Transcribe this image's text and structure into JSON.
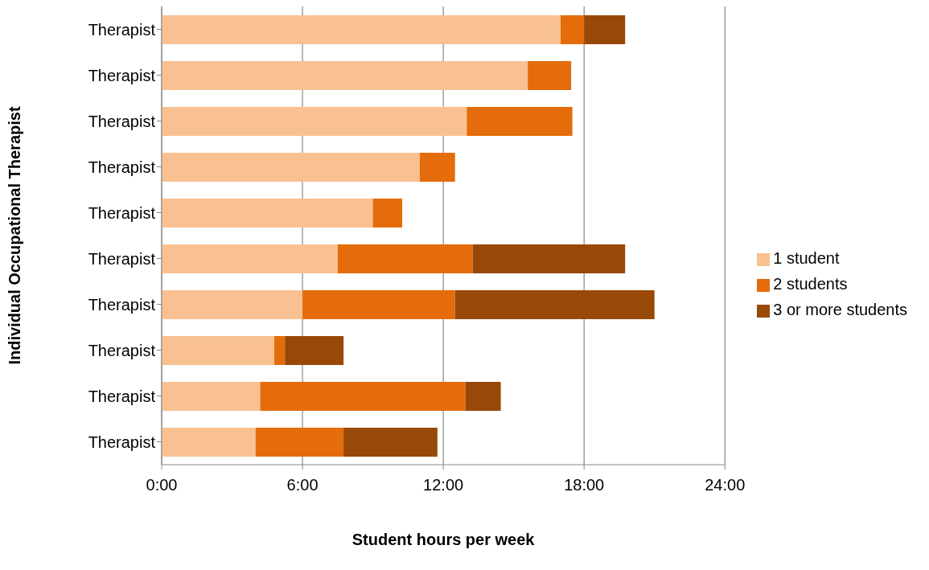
{
  "chart_data": {
    "type": "bar",
    "orientation": "horizontal",
    "stacked": true,
    "xlabel": "Student hours per week",
    "ylabel": "Individual Occupational Therapist",
    "categories": [
      "Therapist",
      "Therapist",
      "Therapist",
      "Therapist",
      "Therapist",
      "Therapist",
      "Therapist",
      "Therapist",
      "Therapist",
      "Therapist"
    ],
    "series": [
      {
        "name": "1 student",
        "color": "#f9c192",
        "values": [
          17,
          15.6,
          13,
          11,
          9,
          7.5,
          6,
          4.8,
          4.2,
          4
        ]
      },
      {
        "name": "2 students",
        "color": "#e46c0a",
        "values": [
          1,
          1.85,
          4.5,
          1.5,
          1.25,
          5.75,
          6.5,
          0.45,
          8.75,
          3.75
        ]
      },
      {
        "name": "3 or more students",
        "color": "#984807",
        "values": [
          1.75,
          null,
          null,
          null,
          null,
          6.5,
          8.5,
          2.5,
          1.5,
          4
        ]
      }
    ],
    "xlim": [
      0,
      24
    ],
    "xticks": [
      {
        "value": 0,
        "label": "0:00"
      },
      {
        "value": 6,
        "label": "6:00"
      },
      {
        "value": 12,
        "label": "12:00"
      },
      {
        "value": 18,
        "label": "18:00"
      },
      {
        "value": 24,
        "label": "24:00"
      }
    ],
    "grid": "x",
    "legend": "right"
  }
}
